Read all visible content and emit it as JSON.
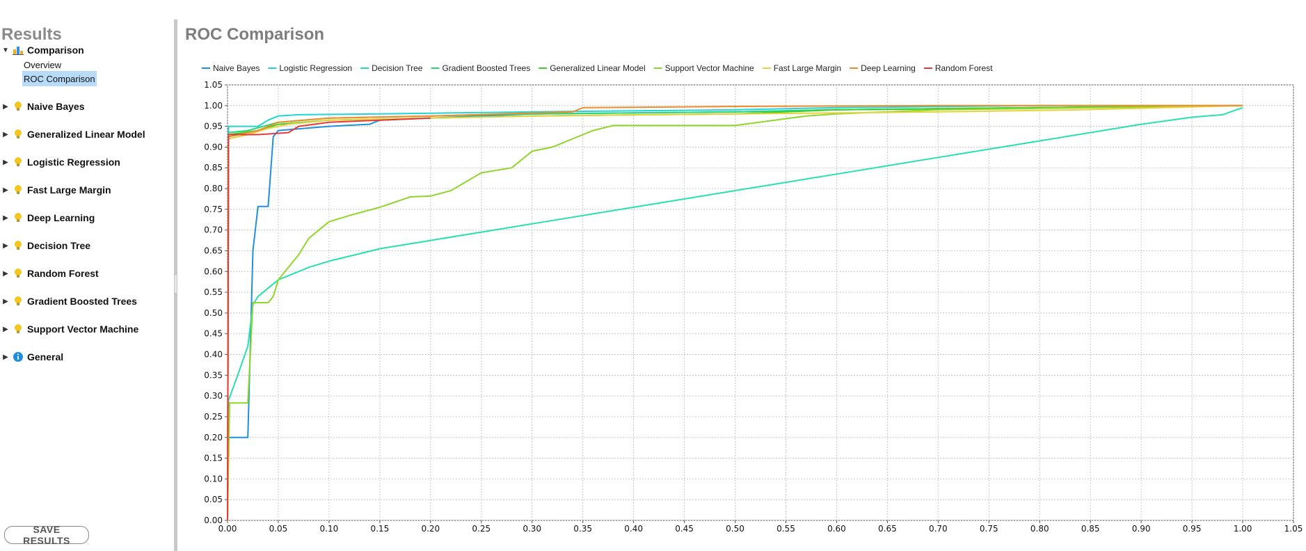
{
  "sidebar": {
    "title": "Results",
    "comparison": {
      "label": "Comparison",
      "children": [
        "Overview",
        "ROC Comparison"
      ],
      "selected": "ROC Comparison"
    },
    "models": [
      "Naive Bayes",
      "Generalized Linear Model",
      "Logistic Regression",
      "Fast Large Margin",
      "Deep Learning",
      "Decision Tree",
      "Random Forest",
      "Gradient Boosted Trees",
      "Support Vector Machine"
    ],
    "general_label": "General",
    "save_label": "SAVE RESULTS"
  },
  "main": {
    "title": "ROC Comparison"
  },
  "chart_data": {
    "type": "line",
    "title": "ROC Comparison",
    "xlabel": "",
    "ylabel": "",
    "xlim": [
      0,
      1.05
    ],
    "ylim": [
      0,
      1.05
    ],
    "xticks": [
      "0.00",
      "0.05",
      "0.10",
      "0.15",
      "0.20",
      "0.25",
      "0.30",
      "0.35",
      "0.40",
      "0.45",
      "0.50",
      "0.55",
      "0.60",
      "0.65",
      "0.70",
      "0.75",
      "0.80",
      "0.85",
      "0.90",
      "0.95",
      "1.00",
      "1.05"
    ],
    "yticks": [
      "0.00",
      "0.05",
      "0.10",
      "0.15",
      "0.20",
      "0.25",
      "0.30",
      "0.35",
      "0.40",
      "0.45",
      "0.50",
      "0.55",
      "0.60",
      "0.65",
      "0.70",
      "0.75",
      "0.80",
      "0.85",
      "0.90",
      "0.95",
      "1.00",
      "1.05"
    ],
    "grid": true,
    "legend_position": "top",
    "series": [
      {
        "name": "Naive Bayes",
        "color": "#1f8fdf",
        "x": [
          0,
          0.001,
          0.002,
          0.02,
          0.025,
          0.03,
          0.04,
          0.045,
          0.05,
          0.1,
          0.14,
          0.15,
          0.25,
          0.3,
          0.5,
          0.6,
          0.8,
          1.0
        ],
        "y": [
          0,
          0.197,
          0.2,
          0.2,
          0.65,
          0.757,
          0.757,
          0.925,
          0.94,
          0.95,
          0.955,
          0.965,
          0.975,
          0.98,
          0.985,
          0.99,
          0.995,
          1.0
        ]
      },
      {
        "name": "Logistic Regression",
        "color": "#22d4d4",
        "x": [
          0,
          0.001,
          0.03,
          0.04,
          0.05,
          0.07,
          0.15,
          0.3,
          0.5,
          0.6,
          0.8,
          1.0
        ],
        "y": [
          0,
          0.95,
          0.95,
          0.965,
          0.975,
          0.978,
          0.98,
          0.985,
          0.99,
          0.995,
          1.0,
          1.0
        ]
      },
      {
        "name": "Decision Tree",
        "color": "#27e0b0",
        "x": [
          0,
          0.001,
          0.01,
          0.02,
          0.025,
          0.03,
          0.04,
          0.05,
          0.08,
          0.1,
          0.15,
          0.2,
          0.3,
          0.4,
          0.5,
          0.6,
          0.7,
          0.8,
          0.9,
          0.95,
          0.98,
          1.0
        ],
        "y": [
          0,
          0.29,
          0.35,
          0.42,
          0.52,
          0.54,
          0.56,
          0.58,
          0.61,
          0.625,
          0.655,
          0.675,
          0.715,
          0.755,
          0.795,
          0.835,
          0.875,
          0.915,
          0.955,
          0.972,
          0.978,
          0.995
        ]
      },
      {
        "name": "Gradient Boosted Trees",
        "color": "#2bd67a",
        "x": [
          0,
          0.001,
          0.02,
          0.05,
          0.1,
          0.2,
          0.3,
          0.5,
          0.6,
          0.8,
          1.0
        ],
        "y": [
          0,
          0.935,
          0.94,
          0.96,
          0.97,
          0.975,
          0.98,
          0.985,
          0.99,
          0.995,
          1.0
        ]
      },
      {
        "name": "Generalized Linear Model",
        "color": "#3ccf2a",
        "x": [
          0,
          0.001,
          0.03,
          0.05,
          0.1,
          0.2,
          0.3,
          0.5,
          0.6,
          0.8,
          1.0
        ],
        "y": [
          0,
          0.93,
          0.94,
          0.955,
          0.965,
          0.97,
          0.975,
          0.98,
          0.99,
          0.995,
          1.0
        ]
      },
      {
        "name": "Support Vector Machine",
        "color": "#8fd62a",
        "x": [
          0,
          0.002,
          0.02,
          0.025,
          0.04,
          0.045,
          0.05,
          0.06,
          0.07,
          0.08,
          0.09,
          0.1,
          0.12,
          0.15,
          0.18,
          0.2,
          0.22,
          0.25,
          0.28,
          0.3,
          0.32,
          0.34,
          0.36,
          0.38,
          0.5,
          0.57,
          0.6,
          0.7,
          0.85,
          1.0
        ],
        "y": [
          0,
          0.283,
          0.283,
          0.525,
          0.525,
          0.54,
          0.58,
          0.61,
          0.64,
          0.68,
          0.7,
          0.72,
          0.735,
          0.755,
          0.78,
          0.782,
          0.795,
          0.838,
          0.85,
          0.89,
          0.9,
          0.92,
          0.94,
          0.952,
          0.952,
          0.975,
          0.98,
          0.99,
          0.995,
          1.0
        ]
      },
      {
        "name": "Fast Large Margin",
        "color": "#e6d23c",
        "x": [
          0,
          0.001,
          0.02,
          0.04,
          0.06,
          0.1,
          0.2,
          0.3,
          0.5,
          0.7,
          0.84,
          1.0
        ],
        "y": [
          0,
          0.92,
          0.93,
          0.945,
          0.955,
          0.965,
          0.97,
          0.975,
          0.98,
          0.985,
          0.99,
          1.0
        ]
      },
      {
        "name": "Deep Learning",
        "color": "#f08a2a",
        "x": [
          0,
          0.001,
          0.03,
          0.05,
          0.1,
          0.2,
          0.34,
          0.35,
          0.5,
          0.7,
          1.0
        ],
        "y": [
          0,
          0.925,
          0.94,
          0.96,
          0.97,
          0.975,
          0.985,
          0.995,
          0.998,
          1.0,
          1.0
        ]
      },
      {
        "name": "Random Forest",
        "color": "#e63a3a",
        "x": [
          0,
          0.001,
          0.03,
          0.06,
          0.07,
          0.1,
          0.15,
          0.2
        ],
        "y": [
          0,
          0.93,
          0.93,
          0.935,
          0.95,
          0.96,
          0.965,
          0.97
        ]
      }
    ]
  }
}
